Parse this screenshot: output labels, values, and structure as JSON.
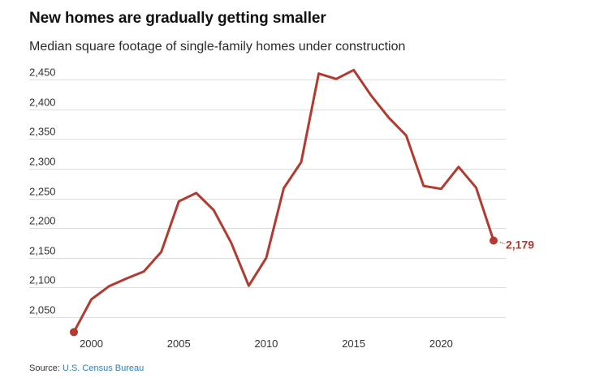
{
  "title": "New homes are gradually getting smaller",
  "subtitle": "Median square footage of single-family homes under construction",
  "source": {
    "label": "Source: ",
    "link_text": "U.S. Census Bureau"
  },
  "colors": {
    "line": "#b23a30",
    "grid": "#dddddd",
    "link": "#2f7fb8"
  },
  "chart_data": {
    "type": "line",
    "title": "New homes are gradually getting smaller",
    "subtitle": "Median square footage of single-family homes under construction",
    "xlabel": "",
    "ylabel": "",
    "x": [
      1999,
      2000,
      2001,
      2002,
      2003,
      2004,
      2005,
      2006,
      2007,
      2008,
      2009,
      2010,
      2011,
      2012,
      2013,
      2014,
      2015,
      2016,
      2017,
      2018,
      2019,
      2020,
      2021,
      2022,
      2023
    ],
    "series": [
      {
        "name": "Median square footage",
        "values": [
          2025,
          2080,
          2102,
          2115,
          2127,
          2160,
          2245,
          2259,
          2230,
          2175,
          2103,
          2150,
          2267,
          2311,
          2460,
          2451,
          2466,
          2423,
          2386,
          2356,
          2271,
          2266,
          2303,
          2268,
          2179
        ]
      }
    ],
    "xlim": [
      1999,
      2023
    ],
    "ylim": [
      2025,
      2475
    ],
    "xticks": [
      2000,
      2005,
      2010,
      2015,
      2020
    ],
    "xtick_labels": [
      "2000",
      "2005",
      "2010",
      "2015",
      "2020"
    ],
    "yticks": [
      2050,
      2100,
      2150,
      2200,
      2250,
      2300,
      2350,
      2400,
      2450
    ],
    "ytick_labels": [
      "2,050",
      "2,100",
      "2,150",
      "2,200",
      "2,250",
      "2,300",
      "2,350",
      "2,400",
      "2,450"
    ],
    "grid": true,
    "legend": "none",
    "annotations": [
      {
        "x": 2023,
        "y": 2179,
        "text": "2,179"
      }
    ]
  }
}
